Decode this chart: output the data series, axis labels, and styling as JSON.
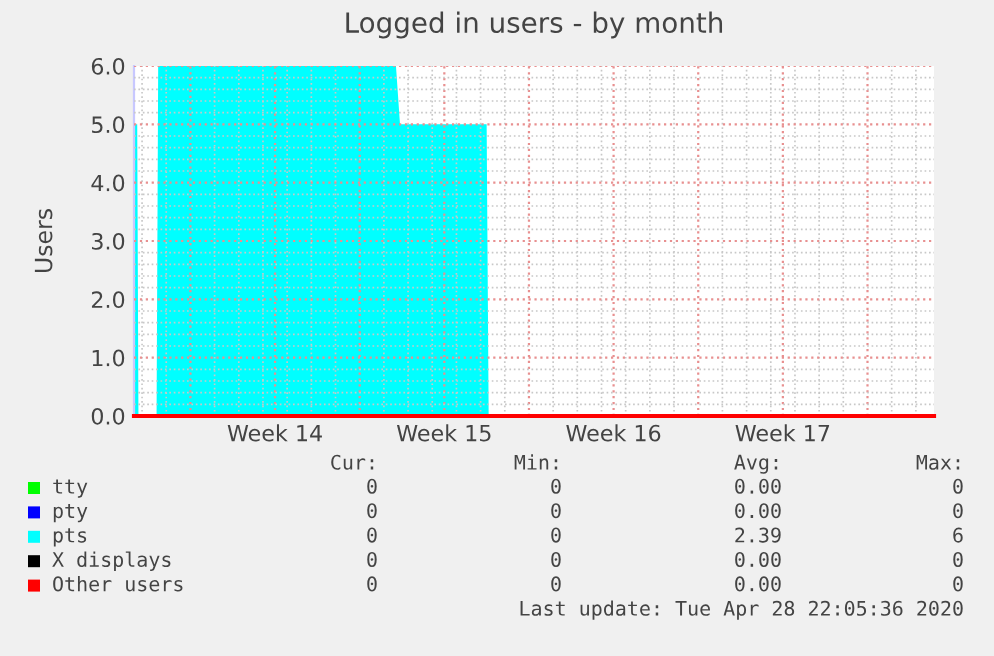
{
  "chart_data": {
    "type": "area",
    "title": "Logged in users - by month",
    "ylabel": "Users",
    "xlim": [
      "2020-03-27T16:00",
      "2020-04-29T18:00"
    ],
    "xticks": [
      {
        "value": "2020-03-30",
        "label": null
      },
      {
        "value": "2020-04-02T12:00",
        "label": "Week 14"
      },
      {
        "value": "2020-04-06",
        "label": null
      },
      {
        "value": "2020-04-09T12:00",
        "label": "Week 15"
      },
      {
        "value": "2020-04-13",
        "label": null
      },
      {
        "value": "2020-04-16T12:00",
        "label": "Week 16"
      },
      {
        "value": "2020-04-20",
        "label": null
      },
      {
        "value": "2020-04-23T12:00",
        "label": "Week 17"
      },
      {
        "value": "2020-04-27",
        "label": null
      }
    ],
    "ylim": [
      0,
      6
    ],
    "yticks": [
      {
        "value": 0,
        "label": "0.0"
      },
      {
        "value": 1,
        "label": "1.0"
      },
      {
        "value": 2,
        "label": "2.0"
      },
      {
        "value": 3,
        "label": "3.0"
      },
      {
        "value": 4,
        "label": "4.0"
      },
      {
        "value": 5,
        "label": "5.0"
      },
      {
        "value": 6,
        "label": "6.0"
      }
    ],
    "grid": true,
    "legend": "bottom",
    "series": [
      {
        "name": "tty",
        "color": "#00ff00",
        "type": "line"
      },
      {
        "name": "pty",
        "color": "#0000ff",
        "type": "line"
      },
      {
        "name": "pts",
        "color": "#00ffff",
        "x": [
          "2020-03-27T16:00",
          "2020-03-27T19:12",
          "2020-03-27T20:24",
          "2020-03-28T14:24",
          "2020-03-28T16:00",
          "2020-04-07T12:00",
          "2020-04-07T16:00",
          "2020-04-11T06:00",
          "2020-04-11T08:00",
          "2020-04-29T18:00"
        ],
        "values": [
          5,
          5,
          0,
          0,
          6,
          6,
          5,
          5,
          0,
          0
        ]
      },
      {
        "name": "X displays",
        "color": "#000000",
        "type": "line"
      },
      {
        "name": "Other users",
        "color": "#ff0000",
        "type": "line",
        "x": [
          "2020-03-27T16:00",
          "2020-04-29T18:00"
        ],
        "values": [
          0,
          0
        ]
      }
    ],
    "annotations": [
      "Cur:",
      "Min:",
      "Avg:",
      "Max:",
      "0",
      "0",
      "0.00",
      "0",
      "0",
      "0",
      "0.00",
      "0",
      "0",
      "0",
      "2.39",
      "6",
      "0",
      "0",
      "0.00",
      "0",
      "0",
      "0",
      "0.00",
      "0",
      "Last update: Tue Apr 28 22:05:36 2020"
    ]
  }
}
